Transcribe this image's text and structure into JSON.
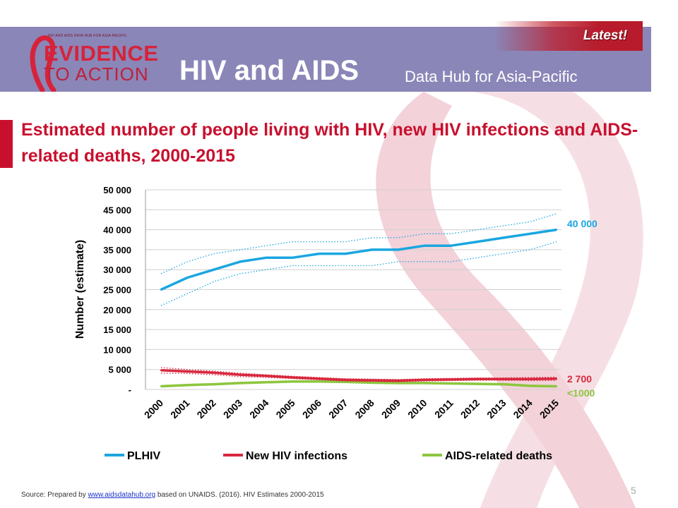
{
  "header": {
    "logo_top": "HIV AND AIDS DATA HUB FOR ASIA-PACIFIC",
    "logo_line1": "EVIDENCE",
    "logo_line2": "TO ACTION",
    "title": "HIV and AIDS",
    "subtitle": "Data Hub for Asia-Pacific",
    "latest_label": "Latest!"
  },
  "slide_title": "Estimated number of people living with HIV, new HIV infections and AIDS-related deaths, 2000-2015",
  "footer": {
    "source_prefix": "Source: Prepared by",
    "source_link": "www.aidsdatahub.org",
    "source_suffix": "based on   UNAIDS. (2016). HIV Estimates 2000-2015",
    "page_number": "5"
  },
  "colors": {
    "plhiv": "#1aa6e0",
    "new_infections": "#d8283e",
    "deaths": "#8dc63f",
    "header_bg": "#8a86b8",
    "title_red": "#c8102e"
  },
  "chart_data": {
    "type": "line",
    "ylabel": "Number (estimate)",
    "xlabel": "",
    "ylim": [
      0,
      50000
    ],
    "yticks": [
      0,
      5000,
      10000,
      15000,
      20000,
      25000,
      30000,
      35000,
      40000,
      45000,
      50000
    ],
    "ytick_labels": [
      "-",
      "5 000",
      "10 000",
      "15 000",
      "20 000",
      "25 000",
      "30 000",
      "35 000",
      "40 000",
      "45 000",
      "50 000"
    ],
    "categories": [
      "2000",
      "2001",
      "2002",
      "2003",
      "2004",
      "2005",
      "2006",
      "2007",
      "2008",
      "2009",
      "2010",
      "2011",
      "2012",
      "2013",
      "2014",
      "2015"
    ],
    "grid": true,
    "legend_position": "bottom",
    "series": [
      {
        "name": "PLHIV",
        "color": "#1aa6e0",
        "values": [
          25000,
          28000,
          30000,
          32000,
          33000,
          33000,
          34000,
          34000,
          35000,
          35000,
          36000,
          36000,
          37000,
          38000,
          39000,
          40000
        ],
        "upper": [
          29000,
          32000,
          34000,
          35000,
          36000,
          37000,
          37000,
          37000,
          38000,
          38000,
          39000,
          39000,
          40000,
          41000,
          42000,
          44000
        ],
        "lower": [
          21000,
          24000,
          27000,
          29000,
          30000,
          31000,
          31000,
          31000,
          31000,
          32000,
          32000,
          32000,
          33000,
          34000,
          35000,
          37000
        ],
        "end_label": "40 000"
      },
      {
        "name": "New HIV infections",
        "color": "#d8283e",
        "values": [
          4800,
          4500,
          4200,
          3700,
          3400,
          3000,
          2700,
          2400,
          2300,
          2200,
          2400,
          2500,
          2600,
          2600,
          2600,
          2700
        ],
        "upper": [
          5500,
          5000,
          4600,
          4100,
          3700,
          3300,
          3000,
          2700,
          2600,
          2500,
          2700,
          2800,
          2900,
          2900,
          3000,
          3100
        ],
        "lower": [
          4100,
          4000,
          3700,
          3200,
          3000,
          2700,
          2400,
          2100,
          2000,
          1900,
          2100,
          2200,
          2300,
          2300,
          2200,
          2300
        ],
        "end_label": "2 700"
      },
      {
        "name": "AIDS-related deaths",
        "color": "#8dc63f",
        "values": [
          800,
          1100,
          1300,
          1600,
          1800,
          2000,
          2000,
          1900,
          1700,
          1600,
          1600,
          1500,
          1400,
          1300,
          900,
          800
        ],
        "upper": [
          1000,
          1300,
          1500,
          1800,
          2000,
          2200,
          2200,
          2100,
          1900,
          1800,
          1800,
          1700,
          1600,
          1500,
          1100,
          1000
        ],
        "lower": [
          600,
          900,
          1100,
          1400,
          1600,
          1800,
          1800,
          1700,
          1500,
          1400,
          1400,
          1300,
          1200,
          1100,
          700,
          600
        ],
        "end_label": "<1000"
      }
    ]
  }
}
